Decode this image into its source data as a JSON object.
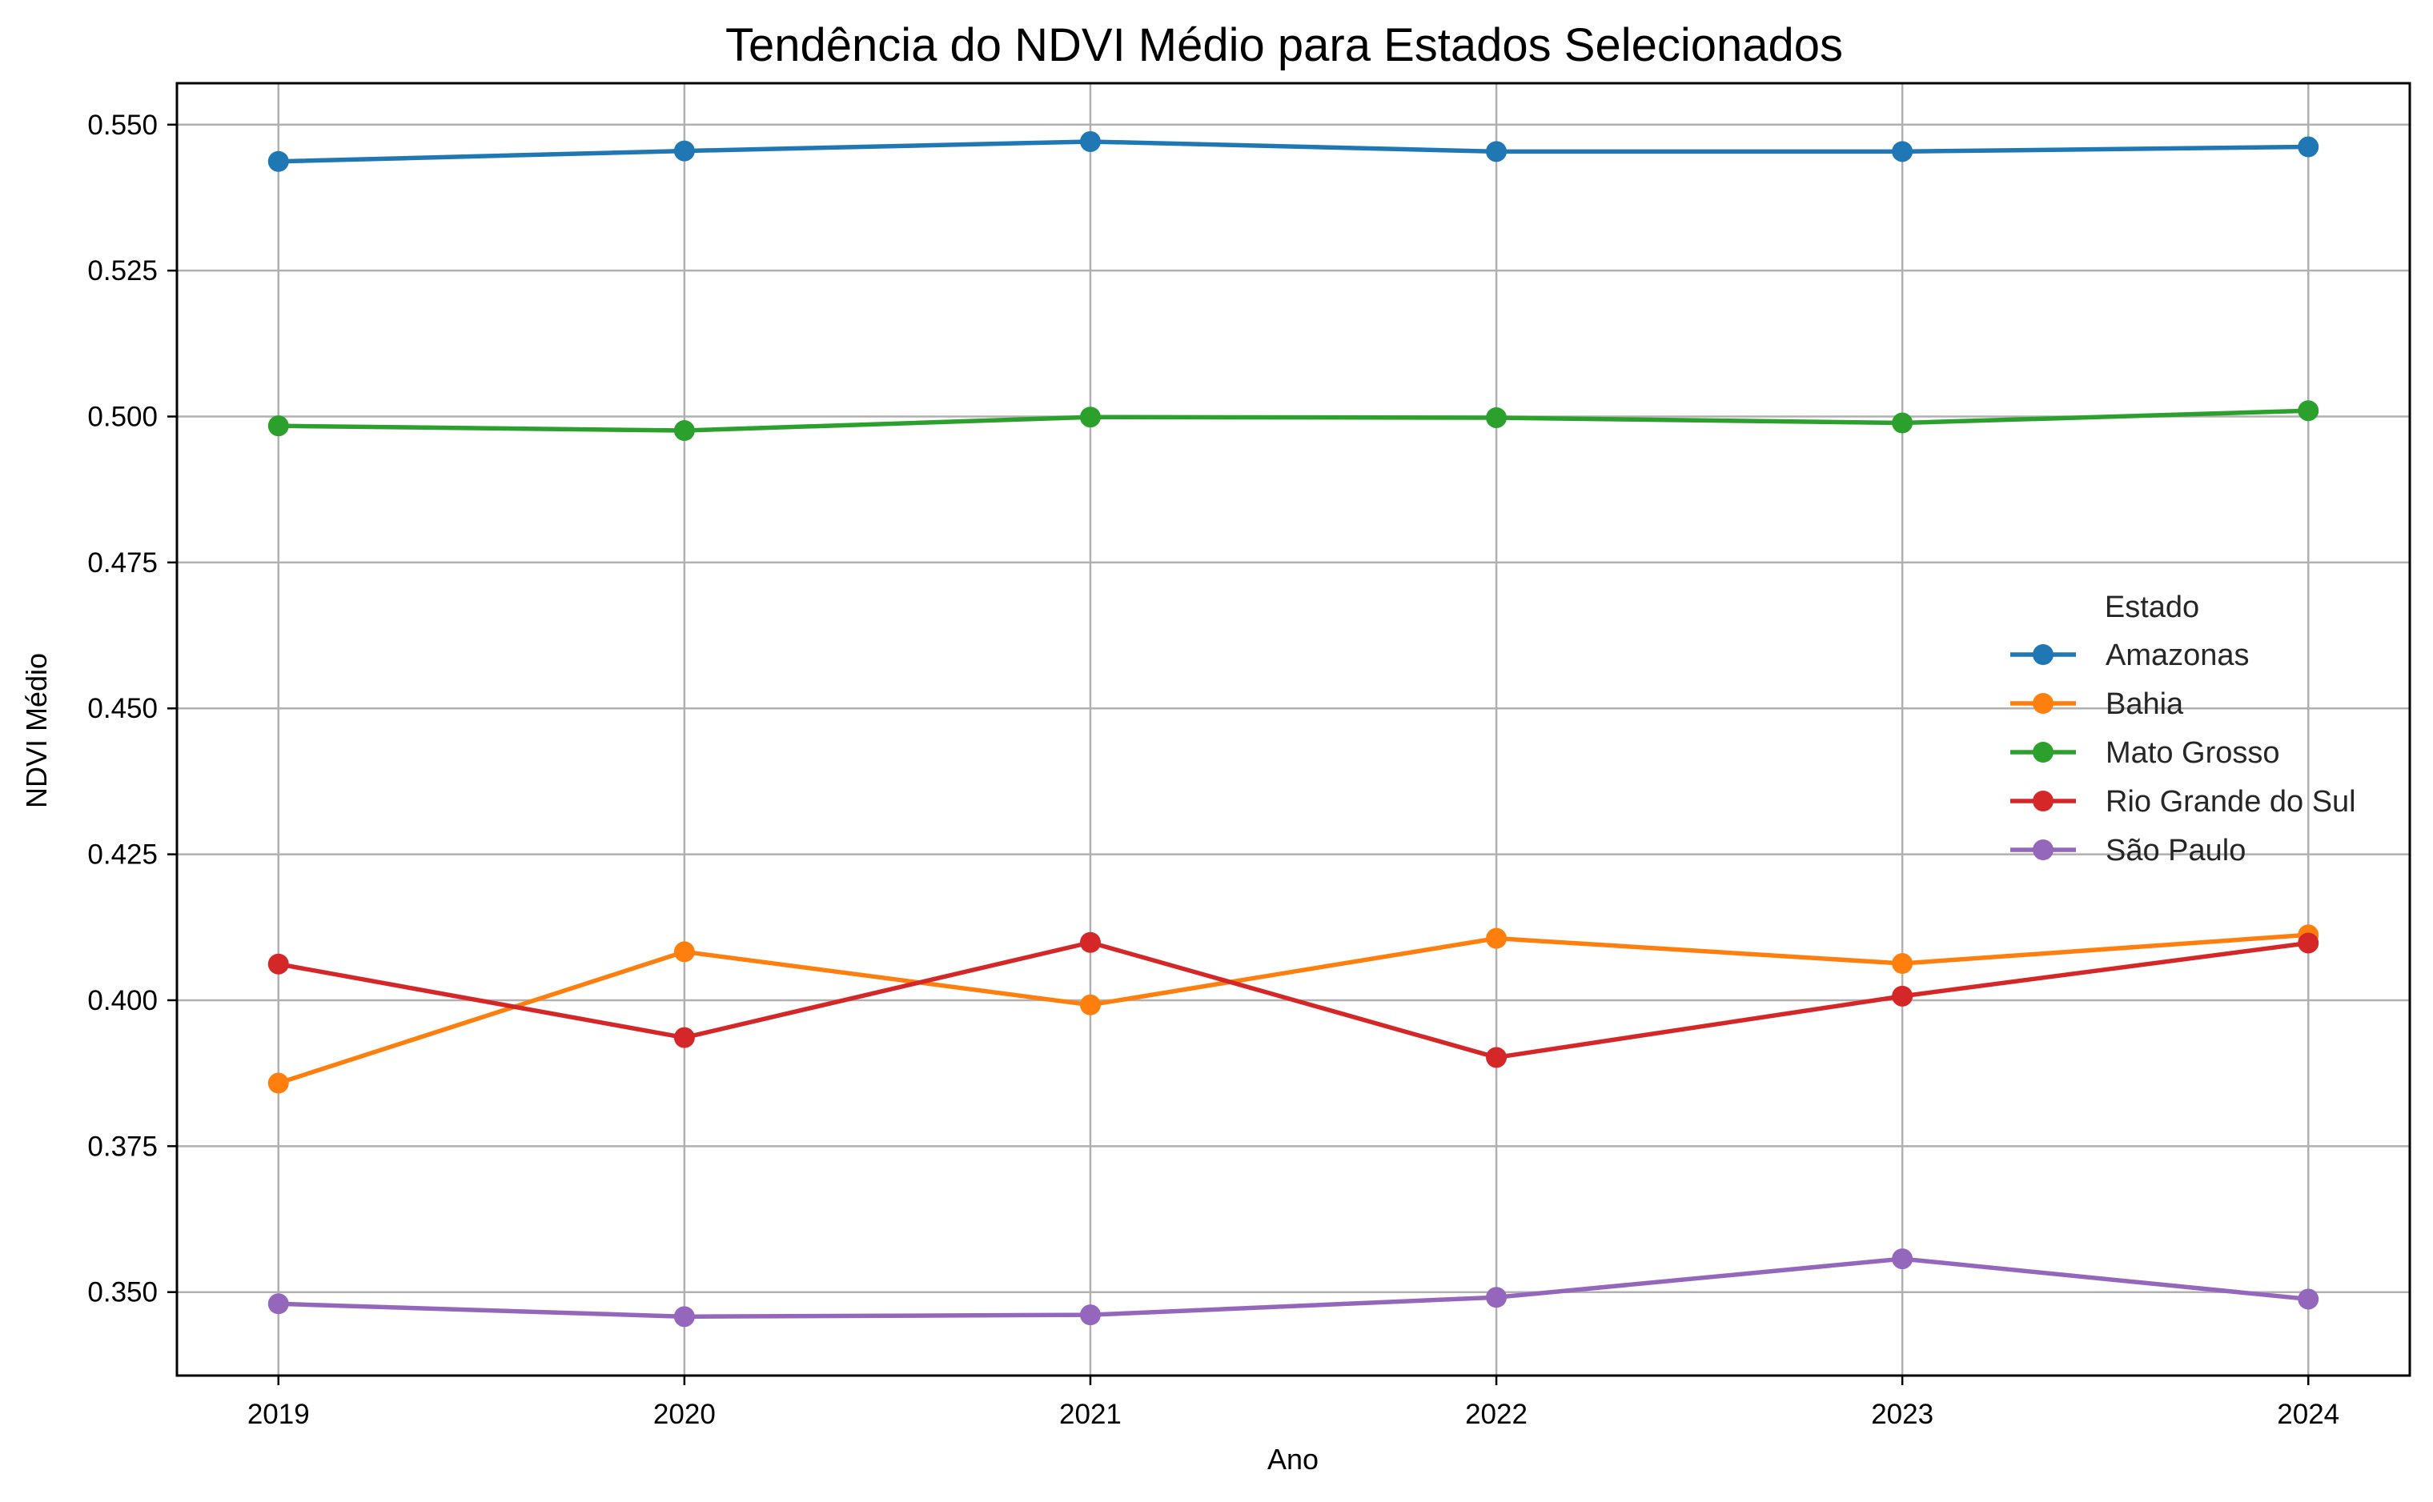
{
  "chart_data": {
    "type": "line",
    "title": "Tendência do NDVI Médio para Estados Selecionados",
    "xlabel": "Ano",
    "ylabel": "NDVI Médio",
    "x": [
      2019,
      2020,
      2021,
      2022,
      2023,
      2024
    ],
    "x_tick_labels": [
      "2019",
      "2020",
      "2021",
      "2022",
      "2023",
      "2024"
    ],
    "xlim": [
      2018.75,
      2024.25
    ],
    "ylim": [
      0.3357,
      0.5571
    ],
    "y_ticks": [
      0.35,
      0.375,
      0.4,
      0.425,
      0.45,
      0.475,
      0.5,
      0.525,
      0.55
    ],
    "y_tick_labels": [
      "0.350",
      "0.375",
      "0.400",
      "0.425",
      "0.450",
      "0.475",
      "0.500",
      "0.525",
      "0.550"
    ],
    "grid": true,
    "legend": {
      "title": "Estado",
      "placement": "center-right"
    },
    "series": [
      {
        "name": "Amazonas",
        "color": "#1f77b4",
        "values": [
          0.5437,
          0.5455,
          0.5471,
          0.5454,
          0.5454,
          0.5462
        ]
      },
      {
        "name": "Bahia",
        "color": "#ff7f0e",
        "values": [
          0.3858,
          0.4083,
          0.3992,
          0.4106,
          0.4063,
          0.4112
        ]
      },
      {
        "name": "Mato Grosso",
        "color": "#2ca02c",
        "values": [
          0.4984,
          0.4976,
          0.4999,
          0.4998,
          0.4989,
          0.501
        ]
      },
      {
        "name": "Rio Grande do Sul",
        "color": "#d62728",
        "values": [
          0.4062,
          0.3936,
          0.4099,
          0.3902,
          0.4007,
          0.4098
        ]
      },
      {
        "name": "São Paulo",
        "color": "#9467bd",
        "values": [
          0.348,
          0.3458,
          0.3461,
          0.3491,
          0.3557,
          0.3488
        ]
      }
    ]
  }
}
